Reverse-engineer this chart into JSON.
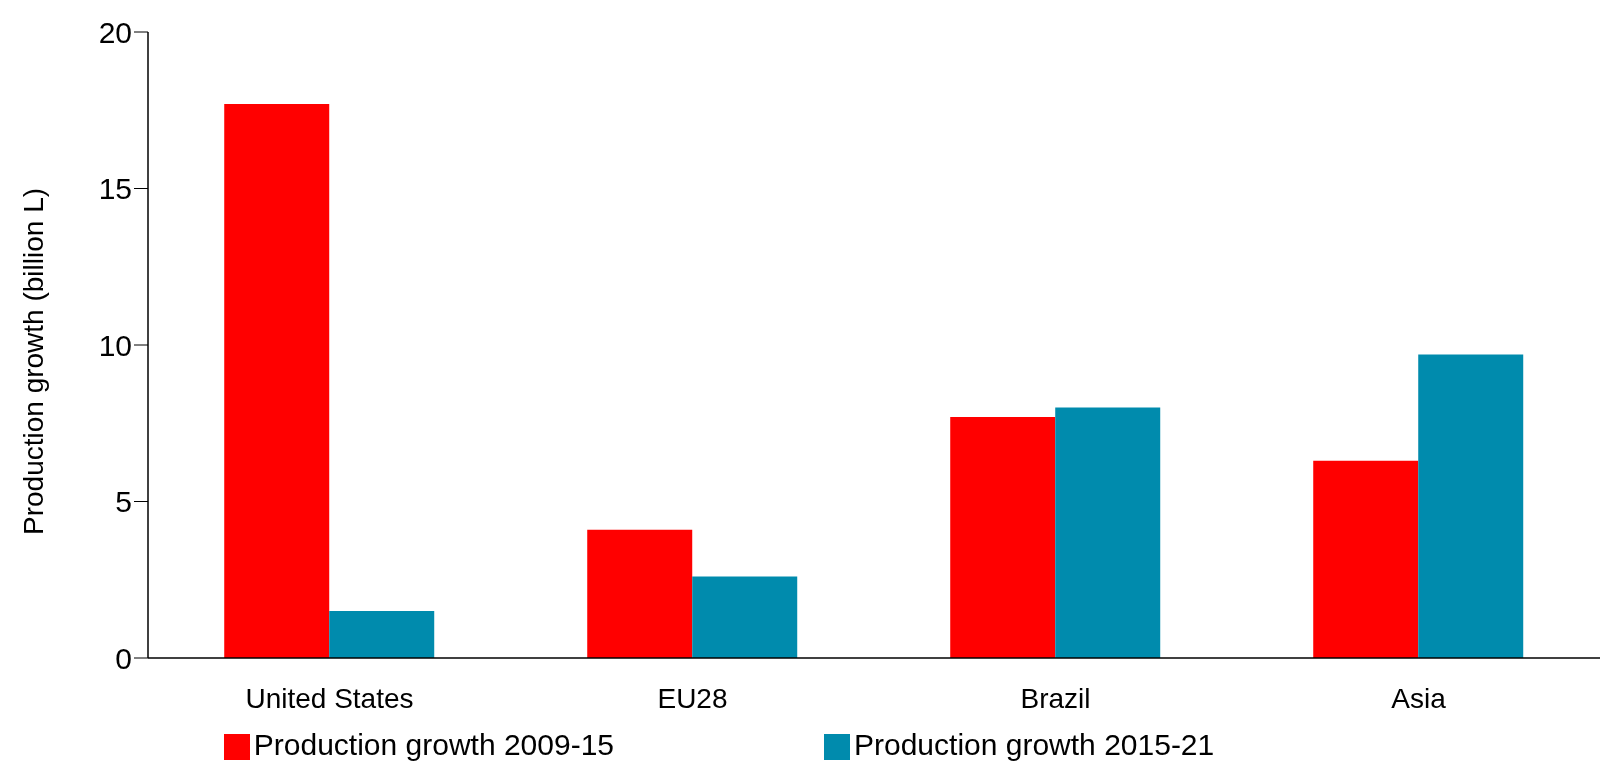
{
  "chart_data": {
    "type": "bar",
    "ylabel": "Production growth (billion L)",
    "categories": [
      "United States",
      "EU28",
      "Brazil",
      "Asia"
    ],
    "series": [
      {
        "name": "Production growth 2009-15",
        "color": "#ff0000",
        "values": [
          17.7,
          4.1,
          7.7,
          6.3
        ]
      },
      {
        "name": "Production growth 2015-21",
        "color": "#008bad",
        "values": [
          1.5,
          2.6,
          8.0,
          9.7
        ]
      }
    ],
    "ylim": [
      0,
      20
    ],
    "yticks": [
      0,
      5,
      10,
      15,
      20
    ],
    "grid": false,
    "legend": "bottom"
  }
}
